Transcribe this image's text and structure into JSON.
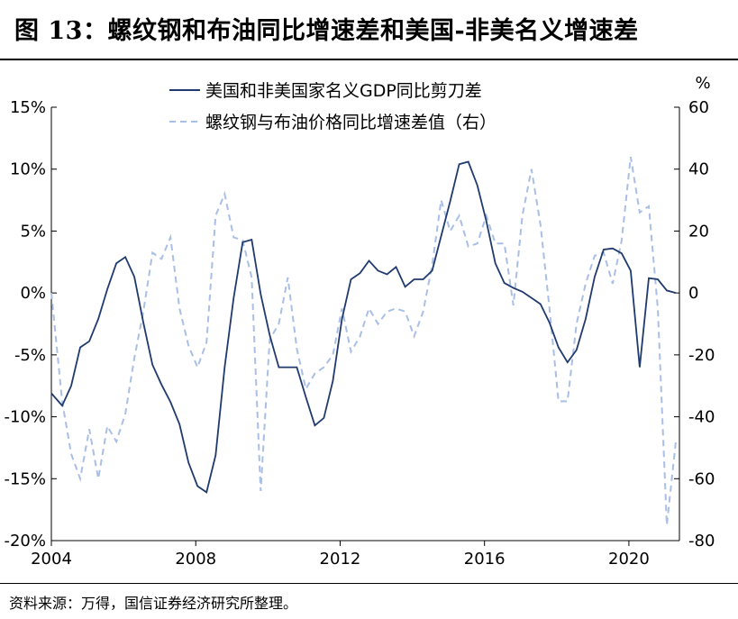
{
  "title": "图 13：螺纹钢和布油同比增速差和美国-非美名义增速差",
  "source": "资料来源：万得，国信证券经济研究所整理。",
  "colors": {
    "series1": "#1f3a6e",
    "series2": "#a9bfe6",
    "axis": "#000000"
  },
  "chart_data": {
    "type": "line",
    "title": "",
    "x_label_left": "",
    "y_left": {
      "min": -20,
      "max": 15,
      "ticks": [
        15,
        10,
        5,
        0,
        -5,
        -10,
        -15,
        -20
      ],
      "tick_labels": [
        "15%",
        "10%",
        "5%",
        "0%",
        "-5%",
        "-10%",
        "-15%",
        "-20%"
      ]
    },
    "y_right": {
      "unit_label": "%",
      "min": -80,
      "max": 60,
      "ticks": [
        60,
        40,
        20,
        0,
        -20,
        -40,
        -60,
        -80
      ],
      "tick_labels": [
        "60",
        "40",
        "20",
        "0",
        "-20",
        "-40",
        "-60",
        "-80"
      ]
    },
    "x_axis": {
      "min": 2004,
      "max": 2021.4,
      "ticks": [
        2004,
        2008,
        2012,
        2016,
        2020
      ],
      "tick_labels": [
        "2004",
        "2008",
        "2012",
        "2016",
        "2020"
      ]
    },
    "legend_position": "top-center",
    "series": [
      {
        "name": "美国和非美国家名义GDP同比剪刀差",
        "axis": "left",
        "style": "solid",
        "points": [
          [
            2004.0,
            -8.1
          ],
          [
            2004.3,
            -9.1
          ],
          [
            2004.55,
            -7.5
          ],
          [
            2004.8,
            -4.4
          ],
          [
            2005.05,
            -3.9
          ],
          [
            2005.3,
            -2.1
          ],
          [
            2005.55,
            0.3
          ],
          [
            2005.8,
            2.4
          ],
          [
            2006.05,
            2.9
          ],
          [
            2006.3,
            1.3
          ],
          [
            2006.55,
            -2.4
          ],
          [
            2006.8,
            -5.8
          ],
          [
            2007.05,
            -7.4
          ],
          [
            2007.3,
            -8.8
          ],
          [
            2007.55,
            -10.6
          ],
          [
            2007.8,
            -13.7
          ],
          [
            2008.05,
            -15.6
          ],
          [
            2008.3,
            -16.1
          ],
          [
            2008.55,
            -13.1
          ],
          [
            2008.8,
            -6.0
          ],
          [
            2009.05,
            -0.4
          ],
          [
            2009.3,
            4.1
          ],
          [
            2009.55,
            4.3
          ],
          [
            2009.8,
            -0.1
          ],
          [
            2010.05,
            -3.4
          ],
          [
            2010.3,
            -6.0
          ],
          [
            2010.55,
            -6.0
          ],
          [
            2010.8,
            -6.0
          ],
          [
            2011.05,
            -8.4
          ],
          [
            2011.3,
            -10.7
          ],
          [
            2011.55,
            -10.1
          ],
          [
            2011.8,
            -7.1
          ],
          [
            2012.05,
            -2.1
          ],
          [
            2012.3,
            1.1
          ],
          [
            2012.55,
            1.6
          ],
          [
            2012.8,
            2.6
          ],
          [
            2013.05,
            1.8
          ],
          [
            2013.3,
            1.5
          ],
          [
            2013.55,
            2.1
          ],
          [
            2013.8,
            0.5
          ],
          [
            2014.05,
            1.1
          ],
          [
            2014.3,
            1.1
          ],
          [
            2014.55,
            1.8
          ],
          [
            2014.8,
            4.6
          ],
          [
            2015.05,
            7.4
          ],
          [
            2015.3,
            10.4
          ],
          [
            2015.55,
            10.6
          ],
          [
            2015.8,
            8.7
          ],
          [
            2016.05,
            5.8
          ],
          [
            2016.3,
            2.4
          ],
          [
            2016.55,
            0.8
          ],
          [
            2016.8,
            0.4
          ],
          [
            2017.05,
            0.1
          ],
          [
            2017.3,
            -0.4
          ],
          [
            2017.55,
            -0.9
          ],
          [
            2017.8,
            -2.4
          ],
          [
            2018.05,
            -4.4
          ],
          [
            2018.3,
            -5.6
          ],
          [
            2018.55,
            -4.6
          ],
          [
            2018.8,
            -2.1
          ],
          [
            2019.05,
            1.3
          ],
          [
            2019.3,
            3.5
          ],
          [
            2019.55,
            3.6
          ],
          [
            2019.8,
            3.2
          ],
          [
            2020.05,
            1.8
          ],
          [
            2020.3,
            -6.0
          ],
          [
            2020.55,
            1.2
          ],
          [
            2020.8,
            1.1
          ],
          [
            2021.05,
            0.2
          ],
          [
            2021.3,
            0.0
          ]
        ]
      },
      {
        "name": "螺纹钢与布油价格同比增速差值（右）",
        "axis": "right",
        "style": "dashed",
        "points": [
          [
            2004.0,
            0
          ],
          [
            2004.3,
            -35
          ],
          [
            2004.55,
            -52
          ],
          [
            2004.8,
            -60
          ],
          [
            2005.05,
            -44
          ],
          [
            2005.3,
            -60
          ],
          [
            2005.55,
            -43
          ],
          [
            2005.8,
            -48
          ],
          [
            2006.05,
            -39
          ],
          [
            2006.3,
            -21
          ],
          [
            2006.55,
            -6
          ],
          [
            2006.8,
            13
          ],
          [
            2007.05,
            11
          ],
          [
            2007.3,
            18
          ],
          [
            2007.55,
            -5
          ],
          [
            2007.8,
            -17
          ],
          [
            2008.05,
            -24
          ],
          [
            2008.3,
            -16
          ],
          [
            2008.55,
            25
          ],
          [
            2008.8,
            32
          ],
          [
            2009.05,
            18
          ],
          [
            2009.3,
            17
          ],
          [
            2009.55,
            5
          ],
          [
            2009.8,
            -64
          ],
          [
            2010.05,
            -15
          ],
          [
            2010.3,
            -10
          ],
          [
            2010.55,
            5
          ],
          [
            2010.8,
            -18
          ],
          [
            2011.05,
            -31
          ],
          [
            2011.3,
            -26
          ],
          [
            2011.55,
            -24
          ],
          [
            2011.8,
            -20
          ],
          [
            2012.05,
            -5
          ],
          [
            2012.3,
            -19
          ],
          [
            2012.55,
            -14
          ],
          [
            2012.8,
            -5
          ],
          [
            2013.05,
            -10
          ],
          [
            2013.3,
            -6
          ],
          [
            2013.55,
            -5
          ],
          [
            2013.8,
            -6
          ],
          [
            2014.05,
            -14
          ],
          [
            2014.3,
            -6
          ],
          [
            2014.55,
            9
          ],
          [
            2014.8,
            30
          ],
          [
            2015.05,
            20
          ],
          [
            2015.3,
            25
          ],
          [
            2015.55,
            15
          ],
          [
            2015.8,
            16
          ],
          [
            2016.05,
            25
          ],
          [
            2016.3,
            16
          ],
          [
            2016.55,
            16
          ],
          [
            2016.8,
            -4
          ],
          [
            2017.05,
            25
          ],
          [
            2017.3,
            40
          ],
          [
            2017.55,
            22
          ],
          [
            2017.8,
            -5
          ],
          [
            2018.05,
            -35
          ],
          [
            2018.3,
            -35
          ],
          [
            2018.55,
            -10
          ],
          [
            2018.8,
            3
          ],
          [
            2019.05,
            12
          ],
          [
            2019.3,
            13
          ],
          [
            2019.55,
            3
          ],
          [
            2019.8,
            17
          ],
          [
            2020.05,
            44
          ],
          [
            2020.3,
            26
          ],
          [
            2020.55,
            28
          ],
          [
            2020.8,
            -5
          ],
          [
            2021.05,
            -75
          ],
          [
            2021.3,
            -48
          ]
        ]
      }
    ]
  }
}
